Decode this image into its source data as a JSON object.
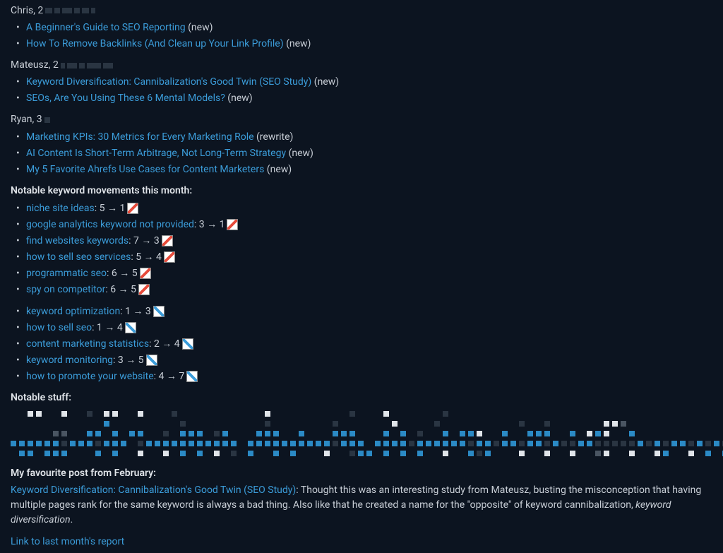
{
  "authors": [
    {
      "name": "Chris",
      "count": "2",
      "obscured_widths": [
        10,
        8,
        14,
        8,
        10,
        6
      ],
      "posts": [
        {
          "title": "A Beginner's Guide to SEO Reporting",
          "tag": "(new)"
        },
        {
          "title": "How To Remove Backlinks (And Clean up Your Link Profile)",
          "tag": "(new)"
        }
      ]
    },
    {
      "name": "Mateusz",
      "count": "2",
      "obscured_widths": [
        6,
        14,
        8,
        20,
        14
      ],
      "posts": [
        {
          "title": "Keyword Diversification: Cannibalization's Good Twin (SEO Study)",
          "tag": "(new)"
        },
        {
          "title": "SEOs, Are You Using These 6 Mental Models?",
          "tag": "(new)"
        }
      ]
    },
    {
      "name": "Ryan",
      "count": "3",
      "obscured_widths": [
        8
      ],
      "posts": [
        {
          "title": "Marketing KPIs: 30 Metrics for Every Marketing Role",
          "tag": "(rewrite)"
        },
        {
          "title": "AI Content Is Short-Term Arbitrage, Not Long-Term Strategy",
          "tag": "(new)"
        },
        {
          "title": "My 5 Favorite Ahrefs Use Cases for Content Marketers",
          "tag": "(new)"
        }
      ]
    }
  ],
  "keywords_heading": "Notable keyword movements this month:",
  "keyword_up": [
    {
      "keyword": "niche site ideas",
      "movement": "5 → 1"
    },
    {
      "keyword": "google analytics keyword not provided",
      "movement": "3 → 1"
    },
    {
      "keyword": "find websites keywords",
      "movement": "7 → 3"
    },
    {
      "keyword": "how to sell seo services",
      "movement": "5 → 4"
    },
    {
      "keyword": "programmatic seo",
      "movement": "6 → 5"
    },
    {
      "keyword": "spy on competitor",
      "movement": "6 → 5"
    }
  ],
  "keyword_down": [
    {
      "keyword": "keyword optimization",
      "movement": "1 → 3"
    },
    {
      "keyword": "how to sell seo",
      "movement": "1 → 4"
    },
    {
      "keyword": "content marketing statistics",
      "movement": "2 → 4"
    },
    {
      "keyword": "keyword monitoring",
      "movement": "3 → 5"
    },
    {
      "keyword": "how to promote your website",
      "movement": "4 → 7"
    }
  ],
  "notable_heading": "Notable stuff:",
  "pixel_rows": [
    "  ww  w  d ww  w   d          w         d   w      d                                                    ",
    "           b        d         d       d      w    d         d  d      wwg                              ",
    "     gg  bb b bb  d bbb db   bbb  b   bbb   b b d  b bbw  b  bbb  b wbw  b                            ",
    "bbbbbbdbbbdbbb dbbbbbbbbbbb bbbbbbbbbbdbbb bbbbdbbbbbbdbbdbbdbbdbddbbdddddbdbdbbdbdbdbbbdbddbddbd",
    " bb bbb   b b  w  w b b w d b  b b   w  dbb b b b  w  bdb   w  w  w  gw  w  wb  w b b  wg g ww  ow w "
  ],
  "favourite_heading": "My favourite post from February:",
  "favourite_link": "Keyword Diversification: Cannibalization's Good Twin (SEO Study)",
  "favourite_text": ": Thought this was an interesting study from Mateusz, busting the misconception that having multiple pages rank for the same keyword is always a bad thing. Also like that he created a name for the \"opposite\" of keyword cannibalization, ",
  "favourite_italic": "keyword diversification",
  "favourite_period": ".",
  "last_month_link": "Link to last month's report"
}
